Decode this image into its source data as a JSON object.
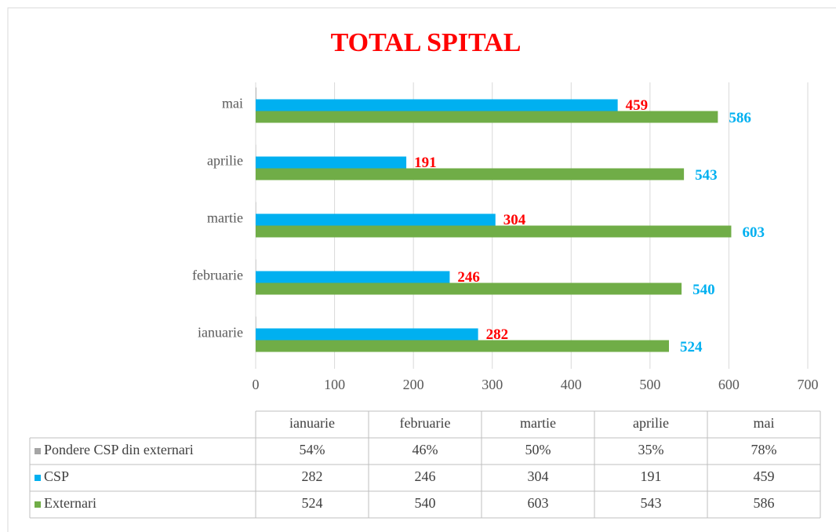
{
  "chart_data": {
    "type": "bar",
    "orientation": "horizontal",
    "title": "TOTAL SPITAL",
    "title_color": "#ff0000",
    "categories": [
      "ianuarie",
      "februarie",
      "martie",
      "aprilie",
      "mai"
    ],
    "series": [
      {
        "name": "Pondere CSP din externari",
        "color": "#a5a5a5",
        "values": [
          0.54,
          0.46,
          0.5,
          0.35,
          0.78
        ],
        "value_labels": [
          "54%",
          "46%",
          "50%",
          "35%",
          "78%"
        ]
      },
      {
        "name": "CSP",
        "color": "#00b0f0",
        "label_color": "#ff0000",
        "values": [
          282,
          246,
          304,
          191,
          459
        ]
      },
      {
        "name": "Externari",
        "color": "#70ad47",
        "label_color": "#00b0f0",
        "values": [
          524,
          540,
          603,
          543,
          586
        ]
      }
    ],
    "xlim": [
      0,
      700
    ],
    "xticks": [
      0,
      100,
      200,
      300,
      400,
      500,
      600,
      700
    ],
    "grid": true,
    "data_table": true
  }
}
